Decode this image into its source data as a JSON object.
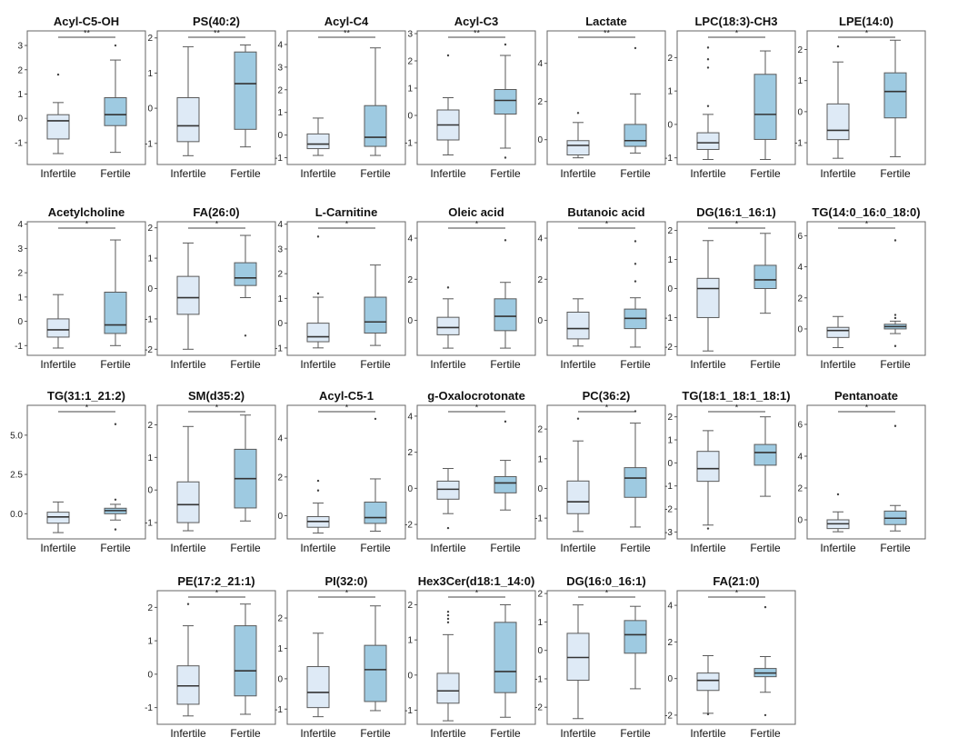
{
  "figure": {
    "categories": [
      "Infertile",
      "Fertile"
    ],
    "colors": {
      "infertile_fill": "#deeaf6",
      "fertile_fill": "#9ecae1",
      "stroke": "#5a5a5a",
      "median": "#333333",
      "outlier": "#444444"
    }
  },
  "chart_data": [
    {
      "type": "box",
      "title": "Acyl-C5-OH",
      "significance": "**",
      "ylim": [
        -1.9,
        3.6
      ],
      "yticks": [
        -1,
        0,
        1,
        2,
        3
      ],
      "series": [
        {
          "name": "Infertile",
          "whisker_low": -1.45,
          "q1": -0.85,
          "median": -0.1,
          "q3": 0.15,
          "whisker_high": 0.65,
          "outliers": [
            1.8
          ]
        },
        {
          "name": "Fertile",
          "whisker_low": -1.4,
          "q1": -0.3,
          "median": 0.15,
          "q3": 0.85,
          "whisker_high": 2.4,
          "outliers": [
            3.0
          ]
        }
      ]
    },
    {
      "type": "box",
      "title": "PS(40:2)",
      "significance": "**",
      "ylim": [
        -1.6,
        2.2
      ],
      "yticks": [
        -1,
        0,
        1,
        2
      ],
      "series": [
        {
          "name": "Infertile",
          "whisker_low": -1.35,
          "q1": -0.95,
          "median": -0.5,
          "q3": 0.3,
          "whisker_high": 1.75,
          "outliers": []
        },
        {
          "name": "Fertile",
          "whisker_low": -1.1,
          "q1": -0.6,
          "median": 0.7,
          "q3": 1.6,
          "whisker_high": 1.8,
          "outliers": []
        }
      ]
    },
    {
      "type": "box",
      "title": "Acyl-C4",
      "significance": "**",
      "ylim": [
        -1.3,
        4.6
      ],
      "yticks": [
        -1,
        0,
        1,
        2,
        3,
        4
      ],
      "series": [
        {
          "name": "Infertile",
          "whisker_low": -0.9,
          "q1": -0.6,
          "median": -0.4,
          "q3": 0.05,
          "whisker_high": 0.75,
          "outliers": []
        },
        {
          "name": "Fertile",
          "whisker_low": -0.9,
          "q1": -0.5,
          "median": -0.1,
          "q3": 1.3,
          "whisker_high": 3.85,
          "outliers": []
        }
      ]
    },
    {
      "type": "box",
      "title": "Acyl-C3",
      "significance": "**",
      "ylim": [
        -1.8,
        3.1
      ],
      "yticks": [
        -1,
        0,
        1,
        2,
        3
      ],
      "series": [
        {
          "name": "Infertile",
          "whisker_low": -1.45,
          "q1": -0.9,
          "median": -0.35,
          "q3": 0.2,
          "whisker_high": 0.65,
          "outliers": [
            2.2
          ]
        },
        {
          "name": "Fertile",
          "whisker_low": -1.2,
          "q1": 0.05,
          "median": 0.55,
          "q3": 0.95,
          "whisker_high": 2.2,
          "outliers": [
            2.6,
            -1.55
          ]
        }
      ]
    },
    {
      "type": "box",
      "title": "Lactate",
      "significance": "**",
      "ylim": [
        -1.3,
        5.7
      ],
      "yticks": [
        0,
        2,
        4
      ],
      "series": [
        {
          "name": "Infertile",
          "whisker_low": -0.95,
          "q1": -0.8,
          "median": -0.3,
          "q3": -0.05,
          "whisker_high": 0.9,
          "outliers": [
            1.4
          ]
        },
        {
          "name": "Fertile",
          "whisker_low": -0.7,
          "q1": -0.35,
          "median": -0.05,
          "q3": 0.8,
          "whisker_high": 2.4,
          "outliers": [
            4.8
          ]
        }
      ]
    },
    {
      "type": "box",
      "title": "LPC(18:3)-CH3",
      "significance": "*",
      "ylim": [
        -1.2,
        2.8
      ],
      "yticks": [
        -1,
        0,
        1,
        2
      ],
      "series": [
        {
          "name": "Infertile",
          "whisker_low": -1.05,
          "q1": -0.75,
          "median": -0.55,
          "q3": -0.25,
          "whisker_high": 0.3,
          "outliers": [
            0.55,
            1.7,
            1.95,
            2.3
          ]
        },
        {
          "name": "Fertile",
          "whisker_low": -1.05,
          "q1": -0.45,
          "median": 0.3,
          "q3": 1.5,
          "whisker_high": 2.2,
          "outliers": []
        }
      ]
    },
    {
      "type": "box",
      "title": "LPE(14:0)",
      "significance": "*",
      "ylim": [
        -1.7,
        2.6
      ],
      "yticks": [
        -1,
        0,
        1,
        2
      ],
      "series": [
        {
          "name": "Infertile",
          "whisker_low": -1.5,
          "q1": -0.9,
          "median": -0.6,
          "q3": 0.25,
          "whisker_high": 1.6,
          "outliers": [
            2.1
          ]
        },
        {
          "name": "Fertile",
          "whisker_low": -1.45,
          "q1": -0.2,
          "median": 0.65,
          "q3": 1.25,
          "whisker_high": 2.3,
          "outliers": []
        }
      ]
    },
    {
      "type": "box",
      "title": "Acetylcholine",
      "significance": "*",
      "ylim": [
        -1.4,
        4.1
      ],
      "yticks": [
        -1,
        0,
        1,
        2,
        3,
        4
      ],
      "series": [
        {
          "name": "Infertile",
          "whisker_low": -1.1,
          "q1": -0.65,
          "median": -0.35,
          "q3": 0.1,
          "whisker_high": 1.1,
          "outliers": []
        },
        {
          "name": "Fertile",
          "whisker_low": -1.0,
          "q1": -0.5,
          "median": -0.15,
          "q3": 1.2,
          "whisker_high": 3.35,
          "outliers": []
        }
      ]
    },
    {
      "type": "box",
      "title": "FA(26:0)",
      "significance": "*",
      "ylim": [
        -2.2,
        2.2
      ],
      "yticks": [
        -2,
        -1,
        0,
        1,
        2
      ],
      "series": [
        {
          "name": "Infertile",
          "whisker_low": -2.0,
          "q1": -0.85,
          "median": -0.3,
          "q3": 0.4,
          "whisker_high": 1.5,
          "outliers": []
        },
        {
          "name": "Fertile",
          "whisker_low": -0.3,
          "q1": 0.1,
          "median": 0.35,
          "q3": 0.85,
          "whisker_high": 1.75,
          "outliers": [
            -1.55
          ]
        }
      ]
    },
    {
      "type": "box",
      "title": "L-Carnitine",
      "significance": "*",
      "ylim": [
        -1.3,
        4.1
      ],
      "yticks": [
        -1,
        0,
        1,
        2,
        3,
        4
      ],
      "series": [
        {
          "name": "Infertile",
          "whisker_low": -1.0,
          "q1": -0.75,
          "median": -0.55,
          "q3": 0.0,
          "whisker_high": 1.05,
          "outliers": [
            1.2,
            3.5
          ]
        },
        {
          "name": "Fertile",
          "whisker_low": -0.9,
          "q1": -0.4,
          "median": 0.05,
          "q3": 1.05,
          "whisker_high": 2.35,
          "outliers": []
        }
      ]
    },
    {
      "type": "box",
      "title": "Oleic acid",
      "significance": "*",
      "ylim": [
        -1.7,
        4.8
      ],
      "yticks": [
        0,
        2,
        4
      ],
      "series": [
        {
          "name": "Infertile",
          "whisker_low": -1.35,
          "q1": -0.7,
          "median": -0.35,
          "q3": 0.15,
          "whisker_high": 1.05,
          "outliers": [
            1.6
          ]
        },
        {
          "name": "Fertile",
          "whisker_low": -1.35,
          "q1": -0.5,
          "median": 0.2,
          "q3": 1.05,
          "whisker_high": 1.85,
          "outliers": [
            3.9
          ]
        }
      ]
    },
    {
      "type": "box",
      "title": "Butanoic acid",
      "significance": "*",
      "ylim": [
        -1.7,
        4.8
      ],
      "yticks": [
        0,
        2,
        4
      ],
      "series": [
        {
          "name": "Infertile",
          "whisker_low": -1.25,
          "q1": -0.9,
          "median": -0.4,
          "q3": 0.4,
          "whisker_high": 1.05,
          "outliers": []
        },
        {
          "name": "Fertile",
          "whisker_low": -1.3,
          "q1": -0.4,
          "median": 0.1,
          "q3": 0.55,
          "whisker_high": 1.1,
          "outliers": [
            1.9,
            2.75,
            3.85
          ]
        }
      ]
    },
    {
      "type": "box",
      "title": "DG(16:1_16:1)",
      "significance": "*",
      "ylim": [
        -2.3,
        2.3
      ],
      "yticks": [
        -2,
        -1,
        0,
        1,
        2
      ],
      "series": [
        {
          "name": "Infertile",
          "whisker_low": -2.15,
          "q1": -1.0,
          "median": 0.0,
          "q3": 0.35,
          "whisker_high": 1.65,
          "outliers": []
        },
        {
          "name": "Fertile",
          "whisker_low": -0.85,
          "q1": 0.0,
          "median": 0.3,
          "q3": 0.8,
          "whisker_high": 1.9,
          "outliers": []
        }
      ]
    },
    {
      "type": "box",
      "title": "TG(14:0_16:0_18:0)",
      "significance": "*",
      "ylim": [
        -1.7,
        6.9
      ],
      "yticks": [
        0,
        2,
        4,
        6
      ],
      "series": [
        {
          "name": "Infertile",
          "whisker_low": -1.2,
          "q1": -0.55,
          "median": -0.1,
          "q3": 0.1,
          "whisker_high": 0.8,
          "outliers": []
        },
        {
          "name": "Fertile",
          "whisker_low": -0.3,
          "q1": 0.0,
          "median": 0.15,
          "q3": 0.3,
          "whisker_high": 0.5,
          "outliers": [
            0.7,
            0.9,
            -1.1,
            5.7
          ]
        }
      ]
    },
    {
      "type": "box",
      "title": "TG(31:1_21:2)",
      "significance": "*",
      "ylim": [
        -1.6,
        6.9
      ],
      "yticks": [
        0.0,
        2.5,
        5.0
      ],
      "ytick_labels": [
        "0.0",
        "2.5",
        "5.0"
      ],
      "series": [
        {
          "name": "Infertile",
          "whisker_low": -1.2,
          "q1": -0.6,
          "median": -0.2,
          "q3": 0.1,
          "whisker_high": 0.75,
          "outliers": []
        },
        {
          "name": "Fertile",
          "whisker_low": -0.4,
          "q1": 0.0,
          "median": 0.2,
          "q3": 0.35,
          "whisker_high": 0.6,
          "outliers": [
            0.9,
            -1.0,
            5.7
          ]
        }
      ]
    },
    {
      "type": "box",
      "title": "SM(d35:2)",
      "significance": "*",
      "ylim": [
        -1.5,
        2.6
      ],
      "yticks": [
        -1,
        0,
        1,
        2
      ],
      "series": [
        {
          "name": "Infertile",
          "whisker_low": -1.25,
          "q1": -1.0,
          "median": -0.45,
          "q3": 0.25,
          "whisker_high": 1.95,
          "outliers": []
        },
        {
          "name": "Fertile",
          "whisker_low": -0.95,
          "q1": -0.55,
          "median": 0.35,
          "q3": 1.25,
          "whisker_high": 2.3,
          "outliers": []
        }
      ]
    },
    {
      "type": "box",
      "title": "Acyl-C5-1",
      "significance": "*",
      "ylim": [
        -1.2,
        5.7
      ],
      "yticks": [
        0,
        2,
        4
      ],
      "series": [
        {
          "name": "Infertile",
          "whisker_low": -0.9,
          "q1": -0.6,
          "median": -0.3,
          "q3": -0.05,
          "whisker_high": 0.65,
          "outliers": [
            1.3,
            1.8
          ]
        },
        {
          "name": "Fertile",
          "whisker_low": -0.8,
          "q1": -0.4,
          "median": -0.1,
          "q3": 0.7,
          "whisker_high": 1.9,
          "outliers": [
            5.0
          ]
        }
      ]
    },
    {
      "type": "box",
      "title": "g-Oxalocrotonate",
      "significance": "*",
      "ylim": [
        -2.8,
        4.6
      ],
      "yticks": [
        -2,
        0,
        2,
        4
      ],
      "series": [
        {
          "name": "Infertile",
          "whisker_low": -1.4,
          "q1": -0.6,
          "median": -0.05,
          "q3": 0.4,
          "whisker_high": 1.1,
          "outliers": [
            -2.2
          ]
        },
        {
          "name": "Fertile",
          "whisker_low": -1.2,
          "q1": -0.25,
          "median": 0.3,
          "q3": 0.65,
          "whisker_high": 1.55,
          "outliers": [
            3.7
          ]
        }
      ]
    },
    {
      "type": "box",
      "title": "PC(36:2)",
      "significance": "*",
      "ylim": [
        -1.7,
        2.8
      ],
      "yticks": [
        -1,
        0,
        1,
        2
      ],
      "series": [
        {
          "name": "Infertile",
          "whisker_low": -1.45,
          "q1": -0.85,
          "median": -0.45,
          "q3": 0.25,
          "whisker_high": 1.6,
          "outliers": [
            2.35
          ]
        },
        {
          "name": "Fertile",
          "whisker_low": -1.3,
          "q1": -0.3,
          "median": 0.35,
          "q3": 0.7,
          "whisker_high": 2.2,
          "outliers": [
            2.6
          ]
        }
      ]
    },
    {
      "type": "box",
      "title": "TG(18:1_18:1_18:1)",
      "significance": "*",
      "ylim": [
        -3.3,
        2.5
      ],
      "yticks": [
        -3,
        -2,
        -1,
        0,
        1,
        2
      ],
      "series": [
        {
          "name": "Infertile",
          "whisker_low": -2.7,
          "q1": -0.8,
          "median": -0.25,
          "q3": 0.5,
          "whisker_high": 1.4,
          "outliers": [
            -2.85
          ]
        },
        {
          "name": "Fertile",
          "whisker_low": -1.45,
          "q1": -0.1,
          "median": 0.45,
          "q3": 0.8,
          "whisker_high": 2.0,
          "outliers": []
        }
      ]
    },
    {
      "type": "box",
      "title": "Pentanoate",
      "significance": "*",
      "ylim": [
        -1.2,
        7.2
      ],
      "yticks": [
        0,
        2,
        4,
        6
      ],
      "series": [
        {
          "name": "Infertile",
          "whisker_low": -0.75,
          "q1": -0.55,
          "median": -0.25,
          "q3": 0.0,
          "whisker_high": 0.5,
          "outliers": [
            1.6
          ]
        },
        {
          "name": "Fertile",
          "whisker_low": -0.7,
          "q1": -0.3,
          "median": 0.1,
          "q3": 0.55,
          "whisker_high": 0.9,
          "outliers": [
            5.9
          ]
        }
      ]
    },
    {
      "type": "box",
      "title": "PE(17:2_21:1)",
      "significance": "*",
      "ylim": [
        -1.5,
        2.5
      ],
      "yticks": [
        -1,
        0,
        1,
        2
      ],
      "series": [
        {
          "name": "Infertile",
          "whisker_low": -1.25,
          "q1": -0.9,
          "median": -0.35,
          "q3": 0.25,
          "whisker_high": 1.45,
          "outliers": [
            2.1
          ]
        },
        {
          "name": "Fertile",
          "whisker_low": -1.2,
          "q1": -0.65,
          "median": 0.1,
          "q3": 1.45,
          "whisker_high": 2.1,
          "outliers": []
        }
      ]
    },
    {
      "type": "box",
      "title": "PI(32:0)",
      "significance": "*",
      "ylim": [
        -1.5,
        2.9
      ],
      "yticks": [
        -1,
        0,
        1,
        2
      ],
      "series": [
        {
          "name": "Infertile",
          "whisker_low": -1.25,
          "q1": -0.95,
          "median": -0.45,
          "q3": 0.4,
          "whisker_high": 1.5,
          "outliers": []
        },
        {
          "name": "Fertile",
          "whisker_low": -1.05,
          "q1": -0.75,
          "median": 0.3,
          "q3": 1.1,
          "whisker_high": 2.4,
          "outliers": []
        }
      ]
    },
    {
      "type": "box",
      "title": "Hex3Cer(d18:1_14:0)",
      "significance": "*",
      "ylim": [
        -1.4,
        2.4
      ],
      "yticks": [
        -1,
        0,
        1,
        2
      ],
      "series": [
        {
          "name": "Infertile",
          "whisker_low": -1.3,
          "q1": -0.8,
          "median": -0.45,
          "q3": 0.05,
          "whisker_high": 1.15,
          "outliers": [
            1.5,
            1.6,
            1.7,
            1.8
          ]
        },
        {
          "name": "Fertile",
          "whisker_low": -1.2,
          "q1": -0.5,
          "median": 0.1,
          "q3": 1.5,
          "whisker_high": 2.0,
          "outliers": []
        }
      ]
    },
    {
      "type": "box",
      "title": "DG(16:0_16:1)",
      "significance": "*",
      "ylim": [
        -2.6,
        2.1
      ],
      "yticks": [
        -2,
        -1,
        0,
        1,
        2
      ],
      "series": [
        {
          "name": "Infertile",
          "whisker_low": -2.4,
          "q1": -1.05,
          "median": -0.25,
          "q3": 0.6,
          "whisker_high": 1.6,
          "outliers": []
        },
        {
          "name": "Fertile",
          "whisker_low": -1.35,
          "q1": -0.1,
          "median": 0.55,
          "q3": 1.05,
          "whisker_high": 1.55,
          "outliers": []
        }
      ]
    },
    {
      "type": "box",
      "title": "FA(21:0)",
      "significance": "*",
      "ylim": [
        -2.5,
        4.8
      ],
      "yticks": [
        -2,
        0,
        2,
        4
      ],
      "series": [
        {
          "name": "Infertile",
          "whisker_low": -1.9,
          "q1": -0.65,
          "median": -0.1,
          "q3": 0.3,
          "whisker_high": 1.25,
          "outliers": [
            -1.95
          ]
        },
        {
          "name": "Fertile",
          "whisker_low": -0.75,
          "q1": 0.1,
          "median": 0.3,
          "q3": 0.55,
          "whisker_high": 1.2,
          "outliers": [
            3.9,
            -2.0
          ]
        }
      ]
    }
  ]
}
